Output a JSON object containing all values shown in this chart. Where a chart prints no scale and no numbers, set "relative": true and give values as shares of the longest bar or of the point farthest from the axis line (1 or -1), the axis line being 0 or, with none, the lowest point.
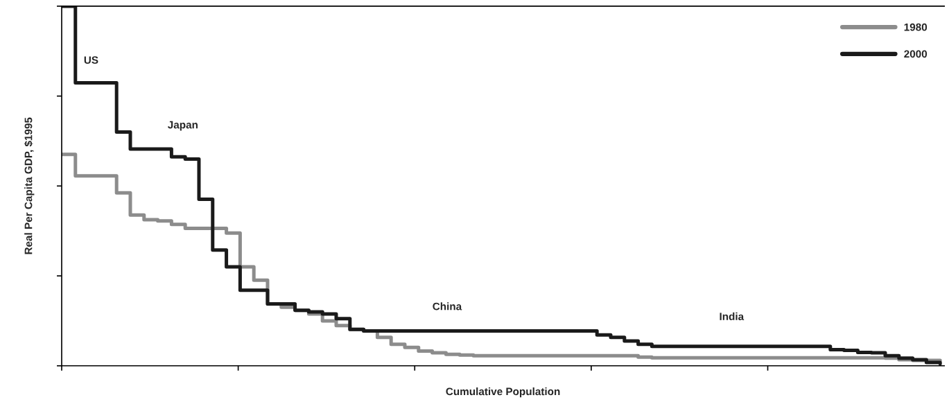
{
  "chart_data": {
    "type": "step",
    "relative": true,
    "xlabel": "Cumulative Population",
    "ylabel": "Real Per Capita GDP, $1995",
    "categories": [
      null,
      null,
      null,
      null,
      null,
      null,
      null,
      null,
      null,
      null,
      null,
      null,
      null,
      null,
      null,
      null,
      null,
      null,
      null,
      null,
      null,
      null,
      null,
      null,
      null,
      null,
      null,
      null,
      null,
      null,
      null,
      null,
      null,
      null,
      null,
      null,
      null,
      null,
      null,
      null,
      null,
      null,
      null,
      null,
      null,
      null,
      null,
      null,
      null,
      null,
      null,
      null,
      null,
      null,
      null,
      null,
      null,
      null,
      null,
      null,
      null,
      null,
      null,
      null,
      null
    ],
    "series": [
      {
        "name": "1980",
        "color": "#8c8c8c",
        "values": [
          0.588,
          0.528,
          0.528,
          0.528,
          0.481,
          0.419,
          0.406,
          0.403,
          0.393,
          0.382,
          0.382,
          0.382,
          0.369,
          0.275,
          0.238,
          0.172,
          0.163,
          0.154,
          0.144,
          0.125,
          0.112,
          0.101,
          0.097,
          0.079,
          0.06,
          0.051,
          0.041,
          0.036,
          0.032,
          0.03,
          0.028,
          0.028,
          0.028,
          0.028,
          0.028,
          0.028,
          0.028,
          0.028,
          0.028,
          0.028,
          0.028,
          0.028,
          0.024,
          0.022,
          0.022,
          0.022,
          0.022,
          0.022,
          0.022,
          0.022,
          0.022,
          0.022,
          0.022,
          0.022,
          0.022,
          0.022,
          0.022,
          0.022,
          0.022,
          0.022,
          0.021,
          0.017,
          0.015,
          0.015,
          0.015
        ]
      },
      {
        "name": "2000",
        "color": "#1a1a1a",
        "values": [
          1.0,
          0.787,
          0.787,
          0.787,
          0.65,
          0.603,
          0.603,
          0.603,
          0.581,
          0.575,
          0.463,
          0.322,
          0.275,
          0.21,
          0.21,
          0.172,
          0.172,
          0.154,
          0.15,
          0.144,
          0.131,
          0.101,
          0.097,
          0.097,
          0.097,
          0.097,
          0.097,
          0.097,
          0.097,
          0.097,
          0.097,
          0.097,
          0.097,
          0.097,
          0.097,
          0.097,
          0.097,
          0.097,
          0.097,
          0.086,
          0.079,
          0.069,
          0.06,
          0.054,
          0.054,
          0.054,
          0.054,
          0.054,
          0.054,
          0.054,
          0.054,
          0.054,
          0.054,
          0.054,
          0.054,
          0.054,
          0.045,
          0.043,
          0.037,
          0.036,
          0.028,
          0.021,
          0.017,
          0.009,
          0.006
        ]
      }
    ],
    "annotations": [
      "US",
      "Japan",
      "China",
      "India"
    ],
    "legend": "top right",
    "grid": false
  }
}
